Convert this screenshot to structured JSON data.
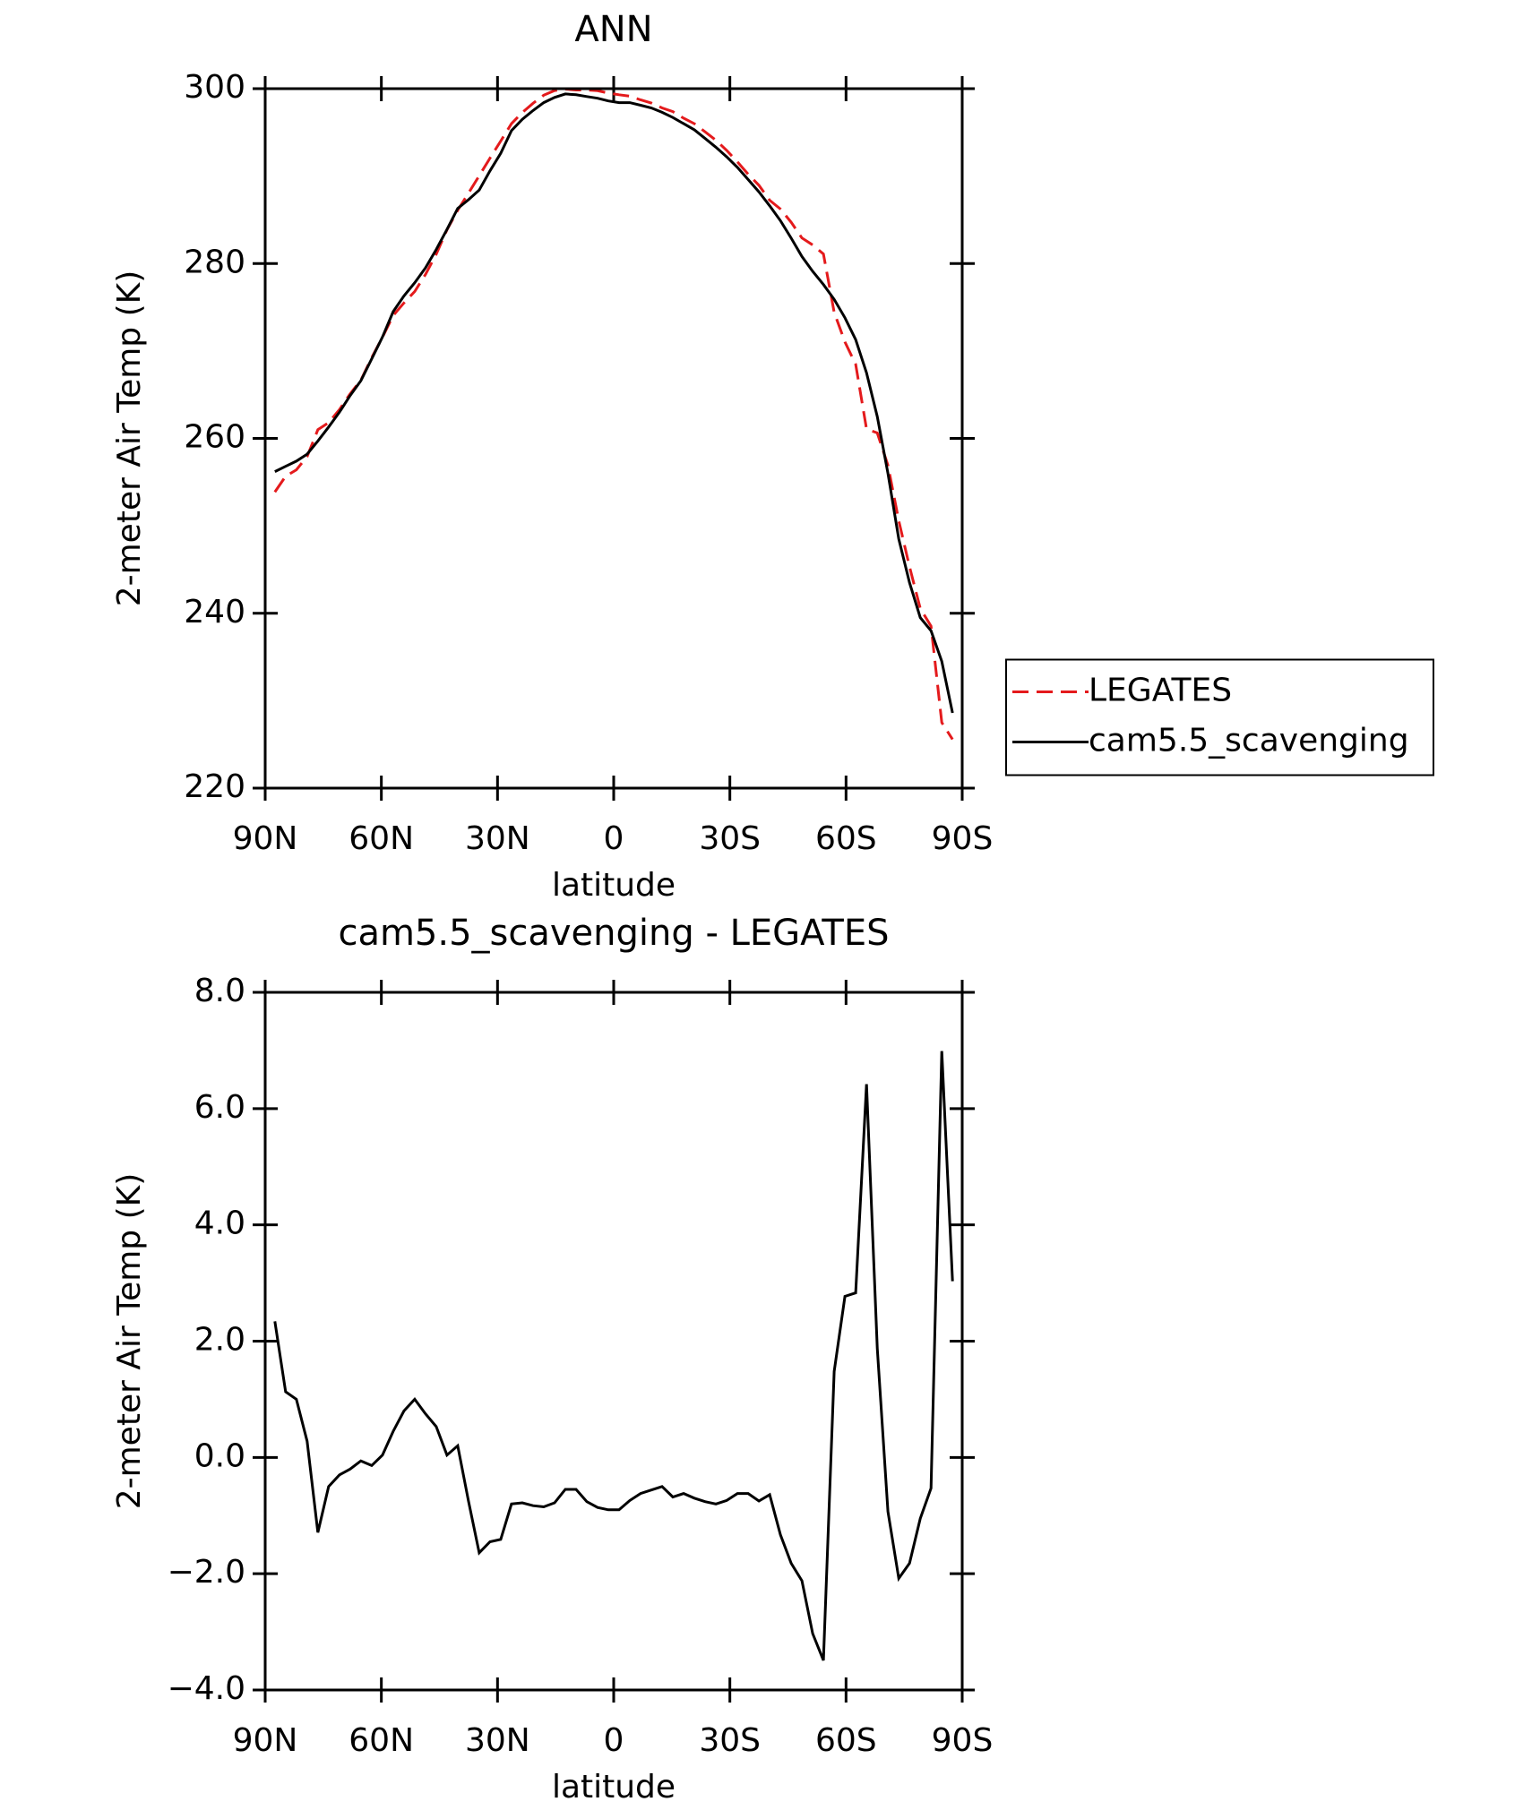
{
  "chart_data": [
    {
      "type": "line",
      "title": "ANN",
      "xlabel": "latitude",
      "ylabel": "2-meter Air Temp (K)",
      "x": [
        87.5,
        84.72,
        81.94,
        79.17,
        76.39,
        73.61,
        70.83,
        68.06,
        65.28,
        62.5,
        59.72,
        56.94,
        54.17,
        51.39,
        48.61,
        45.83,
        43.06,
        40.28,
        37.5,
        34.72,
        31.94,
        29.17,
        26.39,
        23.61,
        20.83,
        18.06,
        15.28,
        12.5,
        9.72,
        6.94,
        4.17,
        1.39,
        -1.39,
        -4.17,
        -6.94,
        -9.72,
        -12.5,
        -15.28,
        -18.06,
        -20.83,
        -23.61,
        -26.39,
        -29.17,
        -31.94,
        -34.72,
        -37.5,
        -40.28,
        -43.06,
        -45.83,
        -48.61,
        -51.39,
        -54.17,
        -56.94,
        -59.72,
        -62.5,
        -65.28,
        -68.06,
        -70.83,
        -73.61,
        -76.39,
        -79.17,
        -81.94,
        -84.72,
        -87.5
      ],
      "series": [
        {
          "name": "LEGATES",
          "color": "#e41a1c",
          "line_style": "dashed",
          "values": [
            253.86,
            255.67,
            256.4,
            257.92,
            260.99,
            261.8,
            263.3,
            265.1,
            266.66,
            269.24,
            271.56,
            274.05,
            275.5,
            276.8,
            278.75,
            281.07,
            283.86,
            286.1,
            288.05,
            290.04,
            292.05,
            294.01,
            296.0,
            297.28,
            298.33,
            299.25,
            299.78,
            299.95,
            299.85,
            299.86,
            299.76,
            299.5,
            299.3,
            299.14,
            298.72,
            298.36,
            297.8,
            297.38,
            296.62,
            296.0,
            295.06,
            294.1,
            292.94,
            291.62,
            290.22,
            288.95,
            287.24,
            286.23,
            284.72,
            282.92,
            282.13,
            281.09,
            274.42,
            271.03,
            268.47,
            261.08,
            260.62,
            256.93,
            250.58,
            245.32,
            240.55,
            238.53,
            227.51,
            225.57
          ]
        },
        {
          "name": "cam5.5_scavenging",
          "color": "#000000",
          "line_style": "solid",
          "values": [
            256.2,
            256.8,
            257.4,
            258.2,
            259.7,
            261.3,
            263.0,
            264.9,
            266.6,
            269.1,
            271.6,
            274.5,
            276.3,
            277.8,
            279.5,
            281.6,
            283.9,
            286.3,
            287.3,
            288.4,
            290.6,
            292.6,
            295.2,
            296.5,
            297.5,
            298.4,
            299.0,
            299.4,
            299.3,
            299.1,
            298.9,
            298.6,
            298.4,
            298.4,
            298.1,
            297.8,
            297.3,
            296.7,
            296.0,
            295.3,
            294.3,
            293.3,
            292.2,
            291.0,
            289.6,
            288.2,
            286.6,
            284.9,
            282.9,
            280.8,
            279.1,
            277.6,
            275.9,
            273.8,
            271.3,
            267.5,
            262.5,
            256.0,
            248.5,
            243.5,
            239.5,
            238.0,
            234.5,
            228.6
          ]
        }
      ],
      "xlim": [
        90,
        -90
      ],
      "xticks": [
        {
          "value": 90,
          "label": "90N"
        },
        {
          "value": 60,
          "label": "60N"
        },
        {
          "value": 30,
          "label": "30N"
        },
        0,
        {
          "value": -30,
          "label": "30S"
        },
        {
          "value": -60,
          "label": "60S"
        },
        {
          "value": -90,
          "label": "90S"
        }
      ],
      "ylim": [
        220,
        300
      ],
      "yticks": [
        220,
        240,
        260,
        280,
        300
      ],
      "legend": "right"
    },
    {
      "type": "line",
      "title": "cam5.5_scavenging - LEGATES",
      "xlabel": "latitude",
      "ylabel": "2-meter Air Temp (K)",
      "x": [
        87.5,
        84.72,
        81.94,
        79.17,
        76.39,
        73.61,
        70.83,
        68.06,
        65.28,
        62.5,
        59.72,
        56.94,
        54.17,
        51.39,
        48.61,
        45.83,
        43.06,
        40.28,
        37.5,
        34.72,
        31.94,
        29.17,
        26.39,
        23.61,
        20.83,
        18.06,
        15.28,
        12.5,
        9.72,
        6.94,
        4.17,
        1.39,
        -1.39,
        -4.17,
        -6.94,
        -9.72,
        -12.5,
        -15.28,
        -18.06,
        -20.83,
        -23.61,
        -26.39,
        -29.17,
        -31.94,
        -34.72,
        -37.5,
        -40.28,
        -43.06,
        -45.83,
        -48.61,
        -51.39,
        -54.17,
        -56.94,
        -59.72,
        -62.5,
        -65.28,
        -68.06,
        -70.83,
        -73.61,
        -76.39,
        -79.17,
        -81.94,
        -84.72,
        -87.5
      ],
      "series": [
        {
          "color": "#000000",
          "line_style": "solid",
          "values": [
            2.34,
            1.13,
            1.0,
            0.28,
            -1.29,
            -0.5,
            -0.3,
            -0.2,
            -0.06,
            -0.14,
            0.04,
            0.45,
            0.8,
            1.0,
            0.75,
            0.53,
            0.04,
            0.2,
            -0.75,
            -1.64,
            -1.45,
            -1.41,
            -0.8,
            -0.78,
            -0.83,
            -0.85,
            -0.78,
            -0.55,
            -0.55,
            -0.76,
            -0.86,
            -0.9,
            -0.9,
            -0.74,
            -0.62,
            -0.56,
            -0.5,
            -0.68,
            -0.62,
            -0.7,
            -0.76,
            -0.8,
            -0.74,
            -0.62,
            -0.62,
            -0.75,
            -0.64,
            -1.33,
            -1.82,
            -2.12,
            -3.03,
            -3.49,
            1.48,
            2.77,
            2.83,
            6.42,
            1.88,
            -0.93,
            -2.08,
            -1.82,
            -1.05,
            -0.53,
            6.99,
            3.03
          ]
        }
      ],
      "xlim": [
        90,
        -90
      ],
      "xticks": [
        {
          "value": 90,
          "label": "90N"
        },
        {
          "value": 60,
          "label": "60N"
        },
        {
          "value": 30,
          "label": "30N"
        },
        0,
        {
          "value": -30,
          "label": "30S"
        },
        {
          "value": -60,
          "label": "60S"
        },
        {
          "value": -90,
          "label": "90S"
        }
      ],
      "ylim": [
        -4,
        8
      ],
      "yticks": [
        {
          "value": -4,
          "label": "−4.0"
        },
        {
          "value": -2,
          "label": "−2.0"
        },
        {
          "value": 0,
          "label": "0.0"
        },
        {
          "value": 2,
          "label": "2.0"
        },
        {
          "value": 4,
          "label": "4.0"
        },
        {
          "value": 6,
          "label": "6.0"
        },
        {
          "value": 8,
          "label": "8.0"
        }
      ]
    }
  ]
}
